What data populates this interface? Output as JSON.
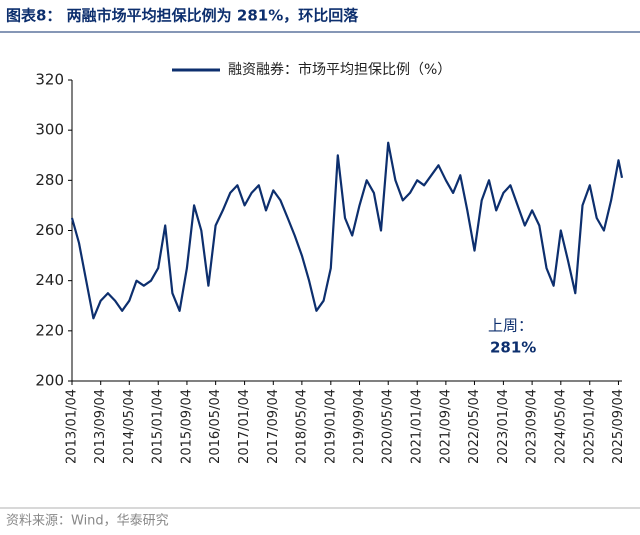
{
  "chart_data": {
    "type": "line",
    "title": "图表8：  两融市场平均担保比例为 281%，环比回落",
    "source": "资料来源：Wind，华泰研究",
    "annotations": [
      "上周：",
      "281%"
    ],
    "x": [
      "2013/01/04",
      "2013/03/04",
      "2013/05/04",
      "2013/07/04",
      "2013/09/04",
      "2013/11/04",
      "2014/01/04",
      "2014/03/04",
      "2014/05/04",
      "2014/07/04",
      "2014/09/04",
      "2014/11/04",
      "2015/01/04",
      "2015/03/04",
      "2015/05/04",
      "2015/07/04",
      "2015/09/04",
      "2015/11/04",
      "2016/01/04",
      "2016/03/04",
      "2016/05/04",
      "2016/07/04",
      "2016/09/04",
      "2016/11/04",
      "2017/01/04",
      "2017/03/04",
      "2017/05/04",
      "2017/07/04",
      "2017/09/04",
      "2017/11/04",
      "2018/01/04",
      "2018/03/04",
      "2018/05/04",
      "2018/07/04",
      "2018/09/04",
      "2018/11/04",
      "2019/01/04",
      "2019/03/04",
      "2019/05/04",
      "2019/07/04",
      "2019/09/04",
      "2019/11/04",
      "2020/01/04",
      "2020/03/04",
      "2020/05/04",
      "2020/07/04",
      "2020/09/04",
      "2020/11/04",
      "2021/01/04",
      "2021/03/04",
      "2021/05/04",
      "2021/07/04",
      "2021/09/04",
      "2021/11/04",
      "2022/01/04",
      "2022/03/04",
      "2022/05/04",
      "2022/07/04",
      "2022/09/04",
      "2022/11/04",
      "2023/01/04",
      "2023/03/04",
      "2023/05/04",
      "2023/07/04",
      "2023/09/04",
      "2023/11/04",
      "2024/01/04",
      "2024/03/04",
      "2024/05/04",
      "2024/07/04",
      "2024/09/04",
      "2024/11/04",
      "2025/01/04",
      "2025/03/04",
      "2025/05/04",
      "2025/07/04",
      "2025/09/04",
      "2025/10/04"
    ],
    "series": [
      {
        "name": "融资融券：市场平均担保比例（%）",
        "color": "#0d2f6e",
        "values": [
          265,
          255,
          240,
          225,
          232,
          235,
          232,
          228,
          232,
          240,
          238,
          240,
          245,
          262,
          235,
          228,
          245,
          270,
          260,
          238,
          262,
          268,
          275,
          278,
          270,
          275,
          278,
          268,
          276,
          272,
          265,
          258,
          250,
          240,
          228,
          232,
          245,
          290,
          265,
          258,
          270,
          280,
          275,
          260,
          295,
          280,
          272,
          275,
          280,
          278,
          282,
          286,
          280,
          275,
          282,
          268,
          252,
          272,
          280,
          268,
          275,
          278,
          270,
          262,
          268,
          262,
          245,
          238,
          260,
          248,
          235,
          270,
          278,
          265,
          260,
          272,
          288,
          281
        ]
      }
    ],
    "xticks": [
      "2013/01/04",
      "2013/09/04",
      "2014/05/04",
      "2015/01/04",
      "2015/09/04",
      "2016/05/04",
      "2017/01/04",
      "2017/09/04",
      "2018/05/04",
      "2019/01/04",
      "2019/09/04",
      "2020/05/04",
      "2021/01/04",
      "2021/09/04",
      "2022/05/04",
      "2023/01/04",
      "2023/09/04",
      "2024/05/04",
      "2025/01/04",
      "2025/09/04"
    ],
    "ylim": [
      200,
      320
    ],
    "yticks": [
      200,
      220,
      240,
      260,
      280,
      300,
      320
    ],
    "legend": "top"
  }
}
